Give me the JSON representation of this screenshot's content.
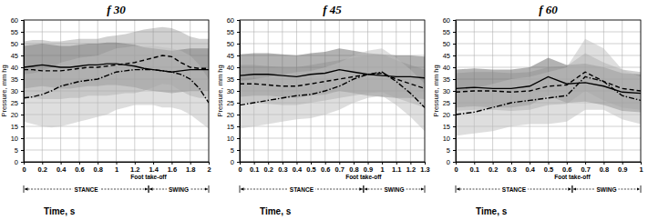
{
  "chart_data": [
    {
      "type": "line",
      "title": "f 30",
      "x_label": "Time, s",
      "y_label": "Pressure, mm hg",
      "grid": true,
      "x": [
        0,
        0.1,
        0.2,
        0.3,
        0.4,
        0.5,
        0.6,
        0.7,
        0.8,
        0.9,
        1,
        1.1,
        1.2,
        1.3,
        1.4,
        1.5,
        1.6,
        1.7,
        1.8,
        1.9,
        2
      ],
      "xlim": [
        0,
        2
      ],
      "xticks": [
        0,
        0.2,
        0.4,
        0.6,
        0.8,
        1,
        1.2,
        1.4,
        1.6,
        1.8,
        2
      ],
      "ylim": [
        0,
        60
      ],
      "yticks": [
        0,
        5,
        10,
        15,
        20,
        25,
        30,
        35,
        40,
        45,
        50,
        55,
        60
      ],
      "series": [
        {
          "color": "#000000",
          "line_style": "solid",
          "values": [
            40,
            40.5,
            41,
            40.5,
            40,
            40,
            40.5,
            41,
            41,
            41.5,
            41.5,
            41,
            40.5,
            39.5,
            39,
            38.5,
            38,
            38.5,
            39,
            39,
            39
          ],
          "upper": [
            49,
            49.5,
            50,
            49.5,
            49,
            49,
            49.5,
            50,
            50,
            50.5,
            50.5,
            50,
            49.5,
            48.5,
            48,
            47.5,
            47,
            47.5,
            48,
            48,
            48
          ],
          "lower": [
            31,
            31.5,
            32,
            31.5,
            31,
            31,
            31.5,
            32,
            32,
            32.5,
            32.5,
            32,
            31.5,
            30.5,
            30,
            29.5,
            29,
            29.5,
            30,
            30,
            30
          ]
        },
        {
          "color": "#000000",
          "line_style": "dashed",
          "values": [
            39,
            39,
            38.5,
            38.5,
            38.5,
            39,
            39.5,
            40,
            40,
            40.5,
            41,
            41.5,
            42,
            43,
            44,
            45,
            44.5,
            42,
            40,
            39.5,
            39.5
          ],
          "upper": [
            51,
            51.5,
            51.5,
            51,
            51,
            51.5,
            52,
            52,
            52,
            53,
            53.5,
            54,
            55,
            56,
            56.5,
            57,
            56.5,
            55,
            53,
            52,
            52
          ],
          "lower": [
            27,
            27,
            26.5,
            26.5,
            26.5,
            27,
            27,
            28,
            28,
            28,
            28.5,
            29,
            29,
            30,
            31.5,
            33,
            32.5,
            30,
            28,
            27,
            27
          ]
        },
        {
          "color": "#000000",
          "line_style": "dashdot",
          "values": [
            27,
            27.5,
            28.5,
            30,
            32,
            33,
            34,
            34.5,
            35,
            36.5,
            38,
            38.5,
            39,
            39,
            39,
            38.5,
            38,
            37,
            35,
            31,
            25
          ],
          "upper": [
            37,
            37.5,
            38.5,
            40,
            42,
            43,
            44,
            44.5,
            45,
            46.5,
            48,
            48.5,
            49,
            49,
            49,
            48.5,
            48,
            47,
            45,
            41,
            35
          ],
          "lower": [
            17,
            16,
            15,
            14.5,
            15,
            16,
            17,
            18,
            19,
            20,
            22,
            23,
            24,
            24,
            24,
            23,
            23,
            22,
            20,
            17,
            14
          ]
        }
      ],
      "phases": [
        {
          "label": "STANCE",
          "start": 0,
          "end": 1.35
        },
        {
          "label": "SWING",
          "start": 1.35,
          "end": 2
        }
      ],
      "annotations": [
        {
          "text": "Foot take-off",
          "x": 1.35
        }
      ]
    },
    {
      "type": "line",
      "title": "f 45",
      "x_label": "Time, s",
      "y_label": "Pressure, mm hg",
      "grid": true,
      "x": [
        0,
        0.1,
        0.2,
        0.3,
        0.4,
        0.5,
        0.6,
        0.7,
        0.8,
        0.9,
        1,
        1.1,
        1.2,
        1.3
      ],
      "xlim": [
        0,
        1.3
      ],
      "xticks": [
        0,
        0.1,
        0.2,
        0.3,
        0.4,
        0.5,
        0.6,
        0.7,
        0.8,
        0.9,
        1,
        1.1,
        1.2,
        1.3
      ],
      "ylim": [
        0,
        60
      ],
      "yticks": [
        0,
        5,
        10,
        15,
        20,
        25,
        30,
        35,
        40,
        45,
        50,
        55,
        60
      ],
      "series": [
        {
          "color": "#000000",
          "line_style": "solid",
          "values": [
            36.5,
            37,
            37,
            36.5,
            36,
            37,
            37.5,
            39,
            38,
            37,
            36.5,
            36,
            36,
            35.5
          ],
          "upper": [
            45.5,
            46,
            46,
            45.5,
            45,
            46,
            46.5,
            48,
            47,
            46,
            45.5,
            45,
            45,
            44.5
          ],
          "lower": [
            27.5,
            28,
            28,
            27.5,
            27,
            28,
            28.5,
            30,
            29,
            28,
            27.5,
            27,
            27,
            26.5
          ]
        },
        {
          "color": "#000000",
          "line_style": "dashed",
          "values": [
            33,
            33,
            32.5,
            32,
            32,
            33,
            34,
            35,
            36,
            37,
            37.5,
            35,
            33,
            31
          ],
          "upper": [
            41,
            41,
            40.5,
            40,
            40,
            41,
            42,
            43,
            44,
            45,
            45.5,
            43,
            41,
            39
          ],
          "lower": [
            25,
            25,
            24.5,
            24,
            24,
            25,
            26,
            27,
            28,
            29,
            29.5,
            27,
            25,
            23
          ]
        },
        {
          "color": "#000000",
          "line_style": "dashdot",
          "values": [
            24,
            25,
            26,
            27,
            28,
            28.5,
            30,
            32,
            35,
            37,
            38,
            34,
            29,
            23
          ],
          "upper": [
            34,
            35,
            36,
            37,
            38,
            38.5,
            40,
            42,
            45,
            47,
            48,
            44,
            39,
            33
          ],
          "lower": [
            14,
            15,
            16,
            17,
            18,
            18.5,
            20,
            22,
            25,
            27,
            28,
            24,
            19,
            13
          ]
        }
      ],
      "phases": [
        {
          "label": "STANCE",
          "start": 0,
          "end": 0.87
        },
        {
          "label": "SWING",
          "start": 0.87,
          "end": 1.3
        }
      ],
      "annotations": [
        {
          "text": "Foot take-off",
          "x": 0.87
        }
      ]
    },
    {
      "type": "line",
      "title": "f 60",
      "x_label": "Time, s",
      "y_label": "Pressure, mm hg",
      "grid": true,
      "x": [
        0,
        0.1,
        0.2,
        0.3,
        0.4,
        0.5,
        0.6,
        0.7,
        0.8,
        0.9,
        1
      ],
      "xlim": [
        0,
        1
      ],
      "xticks": [
        0,
        0.1,
        0.2,
        0.3,
        0.4,
        0.5,
        0.6,
        0.7,
        0.8,
        0.9,
        1
      ],
      "ylim": [
        0,
        60
      ],
      "yticks": [
        0,
        5,
        10,
        15,
        20,
        25,
        30,
        35,
        40,
        45,
        50,
        55,
        60
      ],
      "series": [
        {
          "color": "#000000",
          "line_style": "solid",
          "values": [
            31,
            31.5,
            31,
            31,
            32,
            36,
            33,
            33.5,
            32,
            29.5,
            29
          ],
          "upper": [
            39,
            39.5,
            39,
            39,
            40,
            44,
            41,
            41.5,
            40,
            37.5,
            37
          ],
          "lower": [
            23,
            23.5,
            23,
            23,
            24,
            28,
            25,
            25.5,
            24,
            21.5,
            21
          ]
        },
        {
          "color": "#000000",
          "line_style": "dashed",
          "values": [
            29.5,
            30,
            30,
            29.5,
            30,
            32,
            32.5,
            38,
            34,
            31,
            30
          ],
          "upper": [
            37.5,
            38,
            38,
            37.5,
            38,
            40,
            40.5,
            46,
            42,
            39,
            38
          ],
          "lower": [
            21.5,
            22,
            22,
            21.5,
            22,
            24,
            24.5,
            30,
            26,
            23,
            22
          ]
        },
        {
          "color": "#000000",
          "line_style": "dashdot",
          "values": [
            20,
            21,
            23,
            25,
            26,
            27,
            28,
            36,
            34,
            28,
            26
          ],
          "upper": [
            30,
            31,
            33,
            35,
            36,
            38,
            40,
            52,
            48,
            39,
            36
          ],
          "lower": [
            11,
            12,
            13,
            15,
            16,
            16,
            17,
            22,
            22,
            18,
            16
          ]
        }
      ],
      "phases": [
        {
          "label": "STANCE",
          "start": 0,
          "end": 0.63
        },
        {
          "label": "SWING",
          "start": 0.63,
          "end": 1
        }
      ],
      "annotations": [
        {
          "text": "Foot take-off",
          "x": 0.63
        }
      ]
    }
  ]
}
